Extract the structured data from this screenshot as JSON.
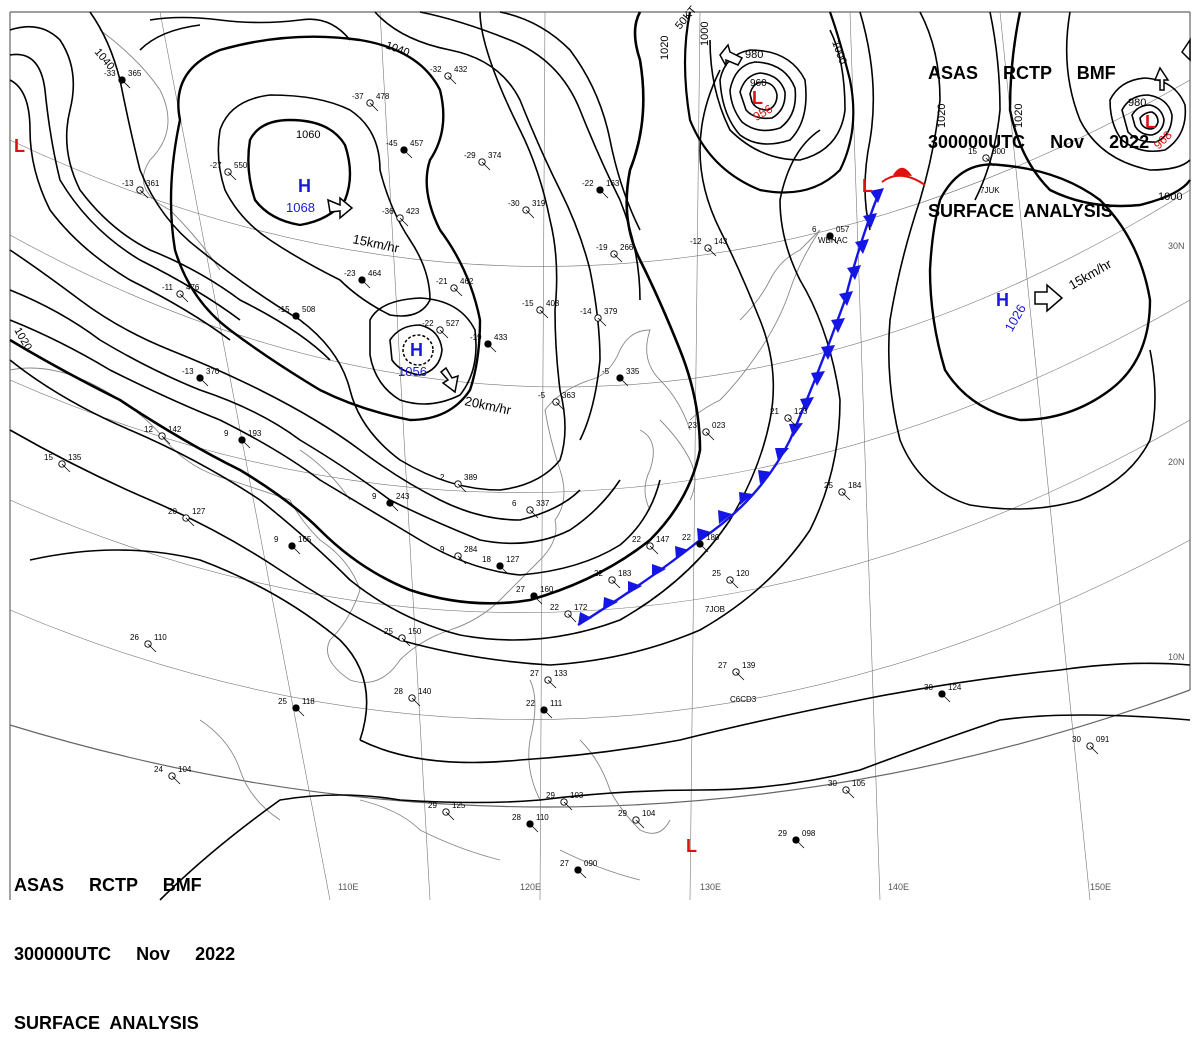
{
  "header": {
    "line1": "ASAS     RCTP     BMF",
    "line2": "300000UTC     Nov     2022",
    "line3": "SURFACE  ANALYSIS"
  },
  "colors": {
    "isobar": "#000000",
    "high": "#1a1adc",
    "low": "#e01010",
    "cold_front": "#1515e6",
    "warm_front": "#e01010",
    "coast": "#888888"
  },
  "pressure_systems": {
    "high_1": {
      "symbol": "H",
      "pressure": "1068",
      "motion": "15km/hr"
    },
    "high_2": {
      "symbol": "H",
      "pressure": "1056",
      "motion": "20km/hr"
    },
    "high_3": {
      "symbol": "H",
      "pressure": "1026",
      "motion": "15km/hr"
    },
    "low_1": {
      "symbol": "L",
      "pressure": "956"
    },
    "low_2": {
      "symbol": "L",
      "pressure": "968"
    },
    "low_3": {
      "symbol": "L"
    },
    "low_4": {
      "symbol": "L"
    },
    "low_5": {
      "symbol": "L"
    }
  },
  "isobar_labels": {
    "l1040a": "1040",
    "l1040b": "1040",
    "l1060": "1060",
    "l1020a": "1020",
    "l1020b": "1020",
    "l1020c": "1020",
    "l1020d": "1020",
    "l1000a": "1000",
    "l1000b": "1000",
    "l1000c": "1000",
    "l980a": "980",
    "l980b": "980",
    "l960": "960",
    "l50kt": "50KT"
  },
  "lat_labels": {
    "n30": "30N",
    "n20": "20N",
    "n10": "10N"
  },
  "lon_labels": {
    "e110": "110E",
    "e120": "120E",
    "e130": "130E",
    "e140": "140E",
    "e150": "150E"
  },
  "stations": [
    {
      "p": "365",
      "t": "-33"
    },
    {
      "p": "432",
      "t": "-32"
    },
    {
      "p": "478",
      "t": "-37"
    },
    {
      "p": "457",
      "t": "-45"
    },
    {
      "p": "374",
      "t": "-29"
    },
    {
      "p": "319",
      "t": "-30"
    },
    {
      "p": "163",
      "t": "-22"
    },
    {
      "p": "550",
      "t": "-27"
    },
    {
      "p": "423",
      "t": "-36"
    },
    {
      "p": "464",
      "t": "-23"
    },
    {
      "p": "462",
      "t": "-21"
    },
    {
      "p": "527",
      "t": "-22"
    },
    {
      "p": "433",
      "t": "-19"
    },
    {
      "p": "403",
      "t": "-15"
    },
    {
      "p": "379",
      "t": "-14"
    },
    {
      "p": "508",
      "t": "-15"
    },
    {
      "p": "476",
      "t": "-11"
    },
    {
      "p": "361",
      "t": "-13"
    },
    {
      "p": "370",
      "t": "-13"
    },
    {
      "p": "266",
      "t": "-19"
    },
    {
      "p": "143",
      "t": "-12"
    },
    {
      "p": "335",
      "t": "-5"
    },
    {
      "p": "363",
      "t": "-5"
    },
    {
      "p": "142",
      "t": "12"
    },
    {
      "p": "193",
      "t": "9"
    },
    {
      "p": "135",
      "t": "15"
    },
    {
      "p": "389",
      "t": "2"
    },
    {
      "p": "243",
      "t": "9"
    },
    {
      "p": "337",
      "t": "6"
    },
    {
      "p": "284",
      "t": "9"
    },
    {
      "p": "165",
      "t": "9"
    },
    {
      "p": "127",
      "t": "20"
    },
    {
      "p": "147",
      "t": "22"
    },
    {
      "p": "180",
      "t": "22"
    },
    {
      "p": "183",
      "t": "22"
    },
    {
      "p": "172",
      "t": "22"
    },
    {
      "p": "160",
      "t": "27"
    },
    {
      "p": "150",
      "t": "25"
    },
    {
      "p": "110",
      "t": "26"
    },
    {
      "p": "118",
      "t": "25"
    },
    {
      "p": "140",
      "t": "28"
    },
    {
      "p": "133",
      "t": "27"
    },
    {
      "p": "111",
      "t": "22"
    },
    {
      "p": "104",
      "t": "24"
    },
    {
      "p": "125",
      "t": "29"
    },
    {
      "p": "110",
      "t": "28"
    },
    {
      "p": "103",
      "t": "29"
    },
    {
      "p": "104",
      "t": "29"
    },
    {
      "p": "090",
      "t": "27"
    },
    {
      "p": "120",
      "t": "25"
    },
    {
      "p": "139",
      "t": "27"
    },
    {
      "p": "124",
      "t": "30"
    },
    {
      "p": "184",
      "t": "25"
    },
    {
      "p": "105",
      "t": "30"
    },
    {
      "p": "098",
      "t": "29"
    },
    {
      "p": "091",
      "t": "30"
    },
    {
      "p": "300",
      "t": "15"
    },
    {
      "p": "057",
      "t": "6"
    },
    {
      "p": "023",
      "t": "23"
    },
    {
      "p": "123",
      "t": "21"
    },
    {
      "p": "127",
      "t": "18"
    }
  ],
  "ship_ids": {
    "s1": "7JUK",
    "s2": "WBHAC",
    "s3": "7JOB",
    "s4": "C6CD3"
  }
}
